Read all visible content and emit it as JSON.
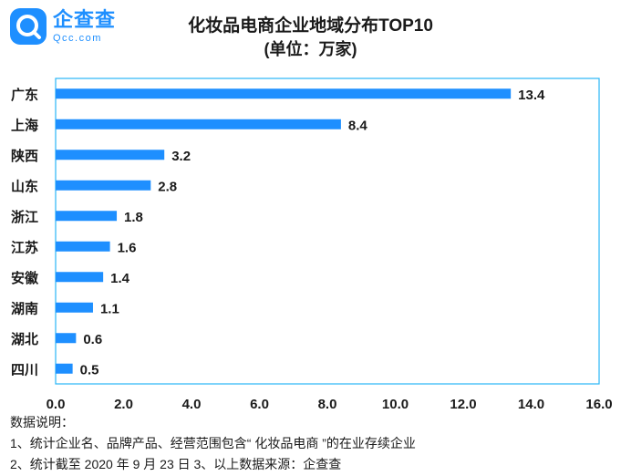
{
  "brand": {
    "name": "企查查",
    "domain": "Qcc.com",
    "accent": "#1e8fff"
  },
  "chart_data": {
    "type": "bar",
    "orientation": "horizontal",
    "title": "化妆品电商企业地域分布TOP10",
    "subtitle": "(单位：万家)",
    "categories": [
      "广东",
      "上海",
      "陕西",
      "山东",
      "浙江",
      "江苏",
      "安徽",
      "湖南",
      "湖北",
      "四川"
    ],
    "values": [
      13.4,
      8.4,
      3.2,
      2.8,
      1.8,
      1.6,
      1.4,
      1.1,
      0.6,
      0.5
    ],
    "value_labels": [
      "13.4",
      "8.4",
      "3.2",
      "2.8",
      "1.8",
      "1.6",
      "1.4",
      "1.1",
      "0.6",
      "0.5"
    ],
    "xlim": [
      0,
      16
    ],
    "x_ticks": [
      "0.0",
      "2.0",
      "4.0",
      "6.0",
      "8.0",
      "10.0",
      "12.0",
      "14.0",
      "16.0"
    ],
    "grid": false,
    "bar_color": "#1e8fff",
    "frame_color": "#29b6f6"
  },
  "notes": {
    "heading": "数据说明：",
    "line1": "1、统计企业名、品牌产品、经营范围包含“ 化妆品电商 ”的在业存续企业",
    "line2": "2、统计截至 2020 年 9 月 23 日  3、以上数据来源：企查查"
  }
}
